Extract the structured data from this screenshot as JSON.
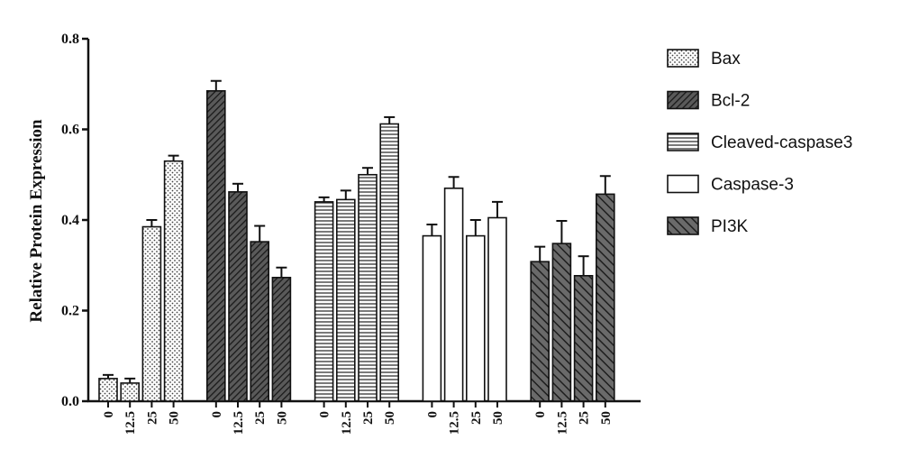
{
  "chart_data": {
    "type": "bar",
    "ylabel": "Relative Protein Expression",
    "xlabel": "",
    "ylim": [
      0,
      0.8
    ],
    "yticks": [
      0.0,
      0.2,
      0.4,
      0.6,
      0.8
    ],
    "ytick_labels": [
      "0.0",
      "0.2",
      "0.4",
      "0.6",
      "0.8"
    ],
    "categories": [
      "0",
      "12.5",
      "25",
      "50"
    ],
    "legend_position": "right",
    "grid": false,
    "series": [
      {
        "name": "Bax",
        "pattern": "dots",
        "fill": "#ffffff",
        "values": [
          0.05,
          0.04,
          0.385,
          0.53
        ],
        "errors": [
          0.008,
          0.01,
          0.015,
          0.012
        ]
      },
      {
        "name": "Bcl-2",
        "pattern": "hatch-dense-dark",
        "fill": "#3c3c3c",
        "values": [
          0.685,
          0.462,
          0.352,
          0.273
        ],
        "errors": [
          0.022,
          0.018,
          0.035,
          0.022
        ]
      },
      {
        "name": "Cleaved-caspase3",
        "pattern": "horizontal-lines",
        "fill": "#ffffff",
        "values": [
          0.44,
          0.445,
          0.5,
          0.612
        ],
        "errors": [
          0.01,
          0.02,
          0.015,
          0.015
        ]
      },
      {
        "name": "Caspase-3",
        "pattern": "none",
        "fill": "#ffffff",
        "values": [
          0.365,
          0.47,
          0.365,
          0.405
        ],
        "errors": [
          0.025,
          0.025,
          0.035,
          0.035
        ]
      },
      {
        "name": "PI3K",
        "pattern": "hatch-sparse-dark",
        "fill": "#5a5a5a",
        "values": [
          0.308,
          0.348,
          0.277,
          0.457
        ],
        "errors": [
          0.033,
          0.05,
          0.043,
          0.04
        ]
      }
    ]
  }
}
